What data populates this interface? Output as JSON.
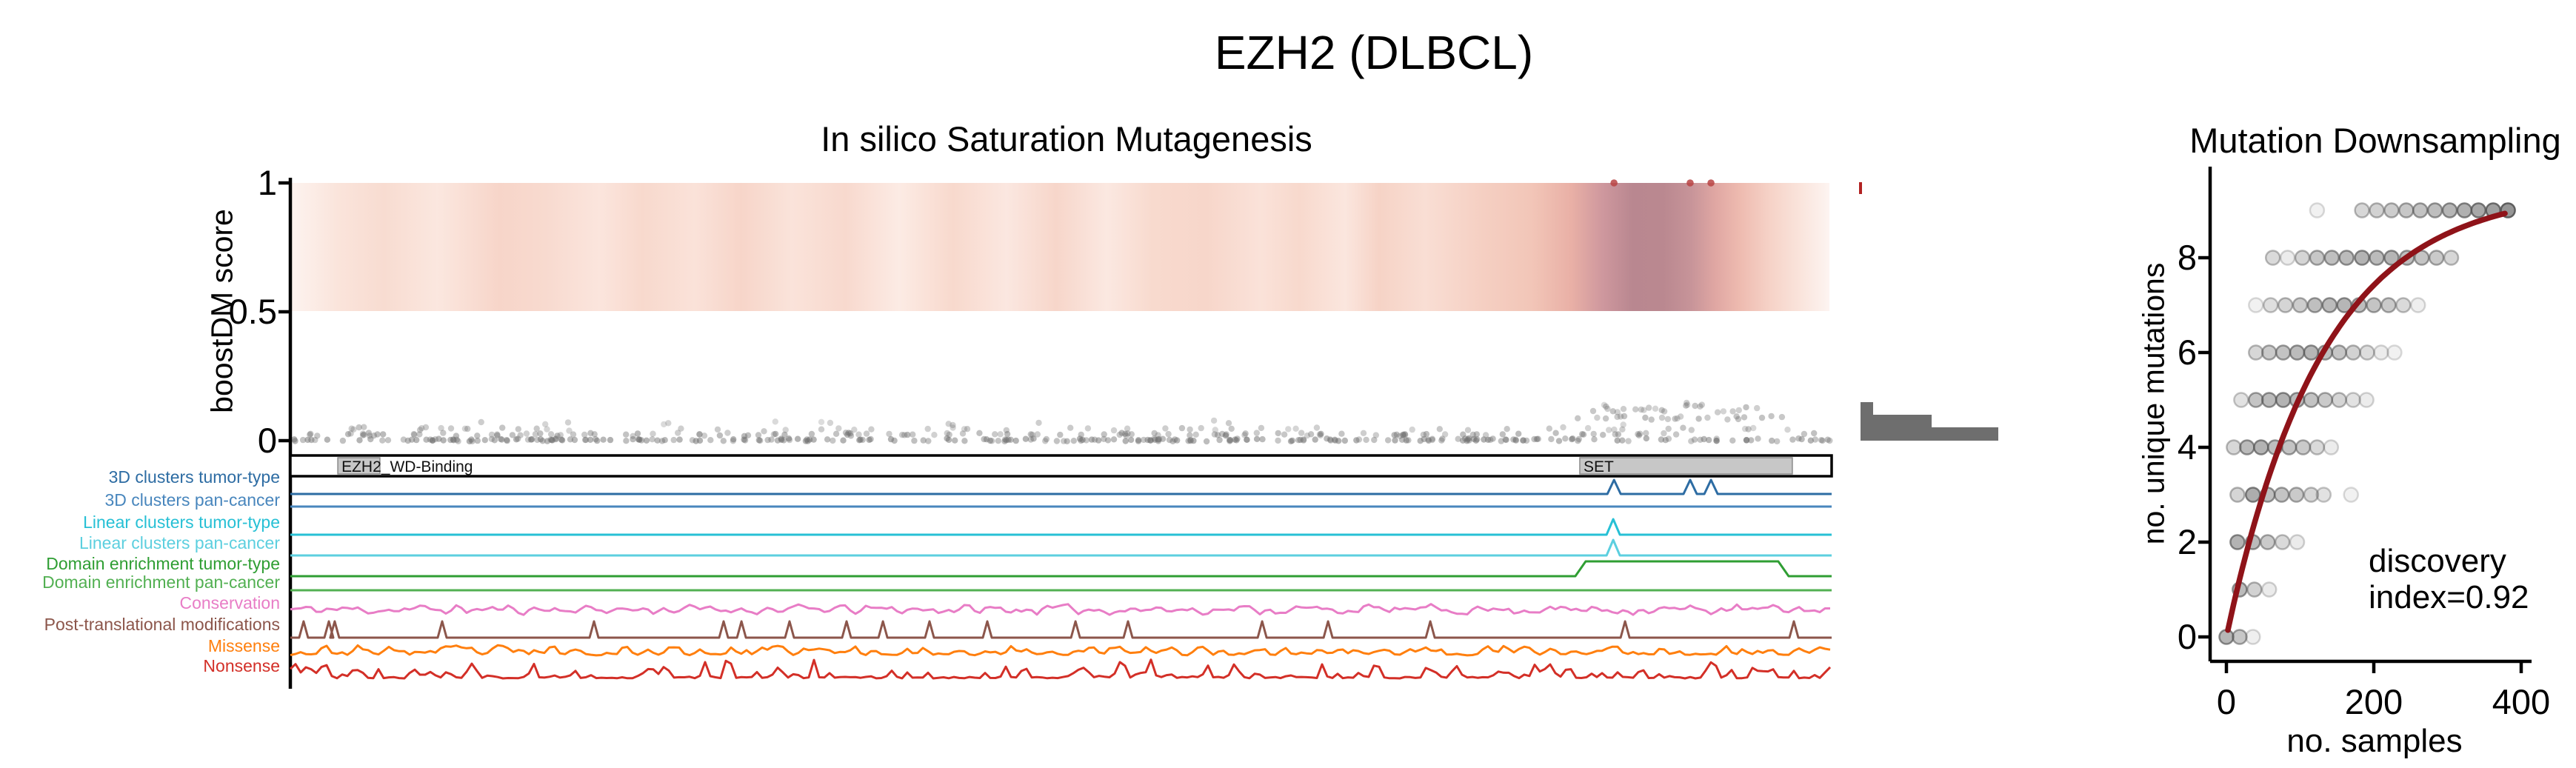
{
  "figure_title": "EZH2 (DLBCL)",
  "colors": {
    "curve_red": "#8f1319",
    "histogram_gray": "#6e6e6e",
    "scatter_gray": "#6f6f6f",
    "downsampling_dot_gray": "#646464",
    "score1_dot_red": "#b94343",
    "score1_tick_red": "#b22222",
    "domain_box_gray": "#c7c7c7"
  },
  "chart_data": [
    {
      "id": "insilico_saturation_mutagenesis",
      "type": "scatter",
      "title": "In silico Saturation Mutagenesis",
      "ylabel": "boostDM score",
      "yticks": [
        {
          "value": 1,
          "label": "1"
        },
        {
          "value": 0.5,
          "label": "0.5"
        },
        {
          "value": 0,
          "label": "0"
        }
      ],
      "ylim": [
        0,
        1
      ],
      "grid": false,
      "heatmap_gradient_stops": [
        [
          0.0,
          "#fdf3ef"
        ],
        [
          0.03,
          "#fae4db"
        ],
        [
          0.06,
          "#f8dcd1"
        ],
        [
          0.095,
          "#fbe7df"
        ],
        [
          0.135,
          "#f7d5c9"
        ],
        [
          0.165,
          "#f8dacf"
        ],
        [
          0.2,
          "#fbe5dd"
        ],
        [
          0.228,
          "#f8d9cd"
        ],
        [
          0.262,
          "#fae2d9"
        ],
        [
          0.292,
          "#f7d5c9"
        ],
        [
          0.325,
          "#fae3da"
        ],
        [
          0.36,
          "#f8d9ce"
        ],
        [
          0.395,
          "#fcebe4"
        ],
        [
          0.43,
          "#f8d9cd"
        ],
        [
          0.465,
          "#fbe7e0"
        ],
        [
          0.497,
          "#f7d6ca"
        ],
        [
          0.53,
          "#fbe8e1"
        ],
        [
          0.56,
          "#f8dace"
        ],
        [
          0.595,
          "#f7d6ca"
        ],
        [
          0.63,
          "#fae2d9"
        ],
        [
          0.655,
          "#f8d9cd"
        ],
        [
          0.685,
          "#fbe6de"
        ],
        [
          0.707,
          "#f6d3c6"
        ],
        [
          0.737,
          "#f9ded4"
        ],
        [
          0.775,
          "#f5cfc2"
        ],
        [
          0.806,
          "#f2c6b8"
        ],
        [
          0.832,
          "#e9b0a6"
        ],
        [
          0.852,
          "#cf989e"
        ],
        [
          0.872,
          "#b98790"
        ],
        [
          0.892,
          "#ba8890"
        ],
        [
          0.91,
          "#c79499"
        ],
        [
          0.926,
          "#e0a7a3"
        ],
        [
          0.942,
          "#eebbb0"
        ],
        [
          0.962,
          "#f6d3c8"
        ],
        [
          0.982,
          "#fae5dd"
        ],
        [
          1.0,
          "#fdf4f1"
        ]
      ],
      "score1_dots_fx": [
        0.8588,
        0.9082,
        0.9217
      ],
      "score1_marginal_tick_present": true,
      "marginal_histogram": {
        "bars": [
          {
            "y_from": 543,
            "y_to": 560,
            "length": 17
          },
          {
            "y_from": 560,
            "y_to": 577,
            "length": 96
          },
          {
            "y_from": 577,
            "y_to": 595,
            "length": 186
          }
        ]
      },
      "scatter_bands": [
        {
          "score": 0.003,
          "count": 280,
          "fx0": 0.002,
          "fx1": 0.999,
          "jitter": 2.2,
          "alpha": 0.45
        },
        {
          "score": 0.024,
          "count": 140,
          "fx0": 0.012,
          "fx1": 0.995,
          "jitter": 2.6,
          "alpha": 0.4
        },
        {
          "score": 0.045,
          "count": 60,
          "fx0": 0.03,
          "fx1": 0.985,
          "jitter": 3.0,
          "alpha": 0.34
        },
        {
          "score": 0.07,
          "count": 14,
          "fx0": 0.06,
          "fx1": 0.96,
          "jitter": 4.0,
          "alpha": 0.3
        },
        {
          "score": 0.09,
          "count": 22,
          "fx0": 0.835,
          "fx1": 0.97,
          "jitter": 4.0,
          "alpha": 0.38
        },
        {
          "score": 0.12,
          "count": 18,
          "fx0": 0.837,
          "fx1": 0.962,
          "jitter": 4.0,
          "alpha": 0.36
        },
        {
          "score": 0.14,
          "count": 8,
          "fx0": 0.845,
          "fx1": 0.935,
          "jitter": 3.0,
          "alpha": 0.33
        }
      ],
      "domains": [
        {
          "label": "EZH2_WD-Binding",
          "fx0": 0.0308,
          "fx1": 0.0581
        },
        {
          "label": "SET",
          "fx0": 0.8366,
          "fx1": 0.9745
        }
      ],
      "tracks": [
        {
          "label": "3D clusters tumor-type",
          "color": "#2d6ca3",
          "kind": "peaks",
          "peaks_fx": [
            0.8588,
            0.9082,
            0.9217
          ],
          "peak_h": 19
        },
        {
          "label": "3D clusters pan-cancer",
          "color": "#4886bd",
          "kind": "flat"
        },
        {
          "label": "Linear clusters tumor-type",
          "color": "#27c0d5",
          "kind": "peaks",
          "peaks_fx": [
            0.8583
          ],
          "peak_h": 21
        },
        {
          "label": "Linear clusters pan-cancer",
          "color": "#5ccfdf",
          "kind": "peaks",
          "peaks_fx": [
            0.8583
          ],
          "peak_h": 21
        },
        {
          "label": "Domain enrichment tumor-type",
          "color": "#2f9e33",
          "kind": "plateau",
          "fx0": 0.8337,
          "fx1": 0.9721,
          "h": 20
        },
        {
          "label": "Domain enrichment pan-cancer",
          "color": "#52b052",
          "kind": "flat"
        },
        {
          "label": "Conservation",
          "color": "#e87dc6",
          "kind": "noise",
          "amp": 8,
          "seed": 11
        },
        {
          "label": "Post-translational modifications",
          "color": "#8c564b",
          "kind": "spikes",
          "peak_h": 22,
          "peaks_fx": [
            0.0086,
            0.025,
            0.0288,
            0.0985,
            0.197,
            0.2811,
            0.2927,
            0.3239,
            0.3609,
            0.3845,
            0.4147,
            0.4522,
            0.5094,
            0.5435,
            0.6305,
            0.6733,
            0.7396,
            0.866,
            0.9755
          ]
        },
        {
          "label": "Missense",
          "color": "#ff7f0e",
          "kind": "noise2",
          "amp": 12,
          "seed": 23
        },
        {
          "label": "Nonsense",
          "color": "#d32f27",
          "kind": "spiky",
          "amp": 26,
          "seed": 37
        }
      ]
    },
    {
      "id": "mutation_downsampling",
      "type": "scatter",
      "title": "Mutation Downsampling",
      "xlabel": "no. samples",
      "ylabel": "no. unique mutations",
      "xticks": [
        0,
        200,
        400
      ],
      "yticks": [
        0,
        2,
        4,
        6,
        8
      ],
      "xlim": [
        -15,
        415
      ],
      "ylim": [
        -0.6,
        9.8
      ],
      "grid": false,
      "series_rows": [
        {
          "y": 9,
          "x": [
            123,
            184,
            204,
            224,
            244,
            263,
            283,
            303,
            323,
            342,
            362,
            382
          ],
          "alpha": [
            0.1,
            0.3,
            0.34,
            0.38,
            0.42,
            0.46,
            0.5,
            0.55,
            0.6,
            0.66,
            0.72,
            0.8
          ]
        },
        {
          "y": 8,
          "x": [
            63,
            83,
            103,
            123,
            143,
            163,
            184,
            204,
            224,
            245,
            265,
            285,
            305
          ],
          "alpha": [
            0.28,
            0.14,
            0.32,
            0.42,
            0.48,
            0.52,
            0.58,
            0.52,
            0.56,
            0.5,
            0.45,
            0.4,
            0.3
          ]
        },
        {
          "y": 7,
          "x": [
            40,
            60,
            80,
            100,
            120,
            140,
            160,
            180,
            200,
            220,
            240,
            260
          ],
          "alpha": [
            0.1,
            0.25,
            0.32,
            0.38,
            0.48,
            0.52,
            0.55,
            0.5,
            0.45,
            0.4,
            0.28,
            0.12
          ]
        },
        {
          "y": 6,
          "x": [
            40,
            58,
            77,
            96,
            115,
            134,
            153,
            172,
            191,
            210,
            228
          ],
          "alpha": [
            0.3,
            0.4,
            0.46,
            0.52,
            0.55,
            0.5,
            0.44,
            0.34,
            0.26,
            0.14,
            0.1
          ]
        },
        {
          "y": 5,
          "x": [
            20,
            40,
            58,
            77,
            96,
            115,
            134,
            153,
            172,
            190
          ],
          "alpha": [
            0.22,
            0.45,
            0.52,
            0.58,
            0.52,
            0.46,
            0.4,
            0.32,
            0.22,
            0.14
          ]
        },
        {
          "y": 4,
          "x": [
            10,
            28,
            47,
            66,
            85,
            104,
            123,
            142
          ],
          "alpha": [
            0.3,
            0.52,
            0.58,
            0.5,
            0.46,
            0.4,
            0.28,
            0.14
          ]
        },
        {
          "y": 3,
          "x": [
            15,
            36,
            56,
            75,
            95,
            115,
            132,
            169
          ],
          "alpha": [
            0.32,
            0.62,
            0.5,
            0.45,
            0.4,
            0.3,
            0.22,
            0.1
          ]
        },
        {
          "y": 2,
          "x": [
            15,
            36,
            56,
            76,
            96
          ],
          "alpha": [
            0.58,
            0.52,
            0.4,
            0.28,
            0.15
          ]
        },
        {
          "y": 1,
          "x": [
            18,
            38,
            58
          ],
          "alpha": [
            0.52,
            0.34,
            0.15
          ]
        },
        {
          "y": 0,
          "x": [
            0,
            18,
            36
          ],
          "alpha": [
            0.55,
            0.42,
            0.12
          ]
        }
      ],
      "fit_curve": {
        "model": "A*(1-exp(-x/tau))",
        "A": 9.45,
        "tau": 130,
        "x_range": [
          2,
          381
        ],
        "color": "#8f1319"
      },
      "annotation": [
        "discovery",
        "index=0.92"
      ],
      "discovery_index": 0.92
    }
  ]
}
